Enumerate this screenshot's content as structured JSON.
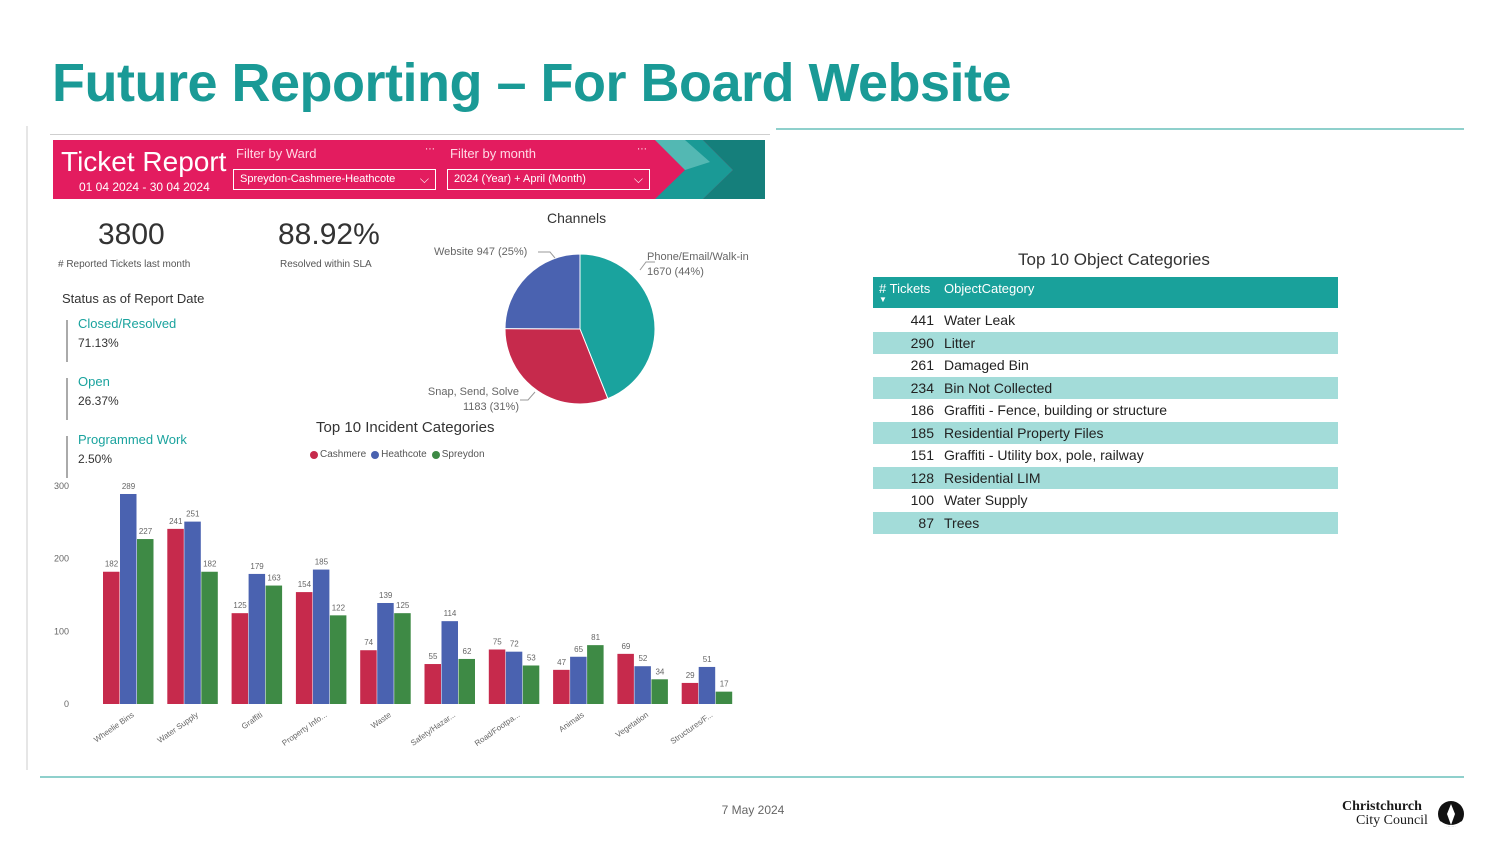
{
  "slide": {
    "title": "Future Reporting – For Board Website",
    "footer_date": "7 May 2024",
    "logo_line1": "Christchurch",
    "logo_line2": "City Council"
  },
  "report": {
    "title": "Ticket Report",
    "date_range": "01 04 2024 - 30 04 2024",
    "filter_ward_label": "Filter by Ward",
    "filter_ward_value": "Spreydon-Cashmere-Heathcote",
    "filter_month_label": "Filter by month",
    "filter_month_value": "2024 (Year) + April (Month)",
    "brand_color": "#e31c5f",
    "accent_color": "#1a9a96"
  },
  "kpis": [
    {
      "value": "3800",
      "label": "# Reported Tickets last month"
    },
    {
      "value": "88.92%",
      "label": "Resolved within SLA"
    }
  ],
  "status": {
    "title": "Status as of Report Date",
    "items": [
      {
        "label": "Closed/Resolved",
        "value": "71.13%"
      },
      {
        "label": "Open",
        "value": "26.37%"
      },
      {
        "label": "Programmed Work",
        "value": "2.50%"
      }
    ]
  },
  "channels": {
    "title": "Channels",
    "labels": {
      "website": "Website 947 (25%)",
      "phone_line1": "Phone/Email/Walk-in",
      "phone_line2": "1670 (44%)",
      "snap_line1": "Snap, Send, Solve",
      "snap_line2": "1183 (31%)"
    }
  },
  "incident": {
    "title": "Top 10 Incident Categories",
    "legend": [
      "Cashmere",
      "Heathcote",
      "Spreydon"
    ]
  },
  "objects": {
    "title": "Top 10 Object Categories",
    "col_tickets": "# Tickets",
    "col_category": "ObjectCategory",
    "rows": [
      {
        "n": "441",
        "cat": "Water Leak"
      },
      {
        "n": "290",
        "cat": "Litter"
      },
      {
        "n": "261",
        "cat": "Damaged Bin"
      },
      {
        "n": "234",
        "cat": "Bin Not Collected"
      },
      {
        "n": "186",
        "cat": "Graffiti - Fence, building or structure"
      },
      {
        "n": "185",
        "cat": "Residential Property Files"
      },
      {
        "n": "151",
        "cat": "Graffiti - Utility box, pole, railway"
      },
      {
        "n": "128",
        "cat": "Residential LIM"
      },
      {
        "n": "100",
        "cat": "Water Supply"
      },
      {
        "n": "87",
        "cat": "Trees"
      }
    ]
  },
  "chart_data": [
    {
      "type": "pie",
      "title": "Channels",
      "slices": [
        {
          "name": "Phone/Email/Walk-in",
          "value": 1670,
          "percent": 44,
          "color": "#1aa39e"
        },
        {
          "name": "Snap, Send, Solve",
          "value": 1183,
          "percent": 31,
          "color": "#c62a4c"
        },
        {
          "name": "Website",
          "value": 947,
          "percent": 25,
          "color": "#4a62b0"
        }
      ]
    },
    {
      "type": "bar",
      "title": "Top 10 Incident Categories",
      "categories": [
        "Wheelie Bins",
        "Water Supply",
        "Graffiti",
        "Property Info...",
        "Waste",
        "Safety/Hazar...",
        "Road/Footpa...",
        "Animals",
        "Vegetation",
        "Structures/F..."
      ],
      "series": [
        {
          "name": "Cashmere",
          "color": "#c62a4c",
          "values": [
            182,
            241,
            125,
            154,
            74,
            55,
            75,
            47,
            69,
            29
          ]
        },
        {
          "name": "Heathcote",
          "color": "#4a62b0",
          "values": [
            289,
            251,
            179,
            185,
            139,
            114,
            72,
            65,
            52,
            51
          ]
        },
        {
          "name": "Spreydon",
          "color": "#3e8a45",
          "values": [
            227,
            182,
            163,
            122,
            125,
            62,
            53,
            81,
            34,
            17
          ]
        }
      ],
      "yticks": [
        0,
        100,
        200,
        300
      ],
      "ylim": [
        0,
        300
      ],
      "legend": "top"
    }
  ]
}
